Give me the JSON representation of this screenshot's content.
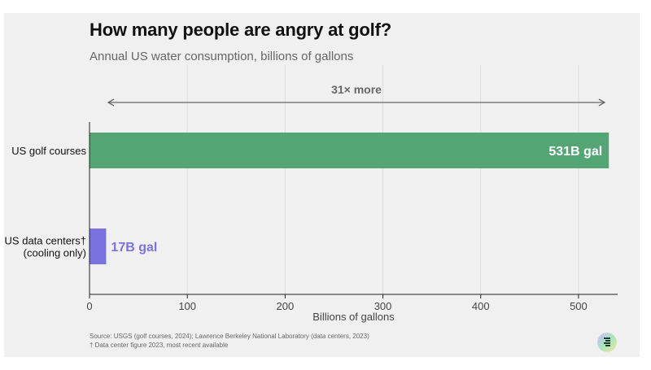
{
  "header": {
    "title": "How many people are angry at golf?",
    "subtitle": "Annual US water consumption, billions of gallons"
  },
  "chart_data": {
    "type": "bar",
    "orientation": "horizontal",
    "title": "How many people are angry at golf?",
    "subtitle": "Annual US water consumption, billions of gallons",
    "xlabel": "Billions of gallons",
    "ylabel": "",
    "xlim": [
      0,
      540
    ],
    "xticks": [
      0,
      100,
      200,
      300,
      400,
      500
    ],
    "categories": [
      "US golf courses",
      "US data centers† (cooling only)"
    ],
    "category_lines": [
      [
        "US golf courses"
      ],
      [
        "US data centers†",
        "(cooling only)"
      ]
    ],
    "values": [
      531,
      17
    ],
    "data_labels": [
      "531B gal",
      "17B gal"
    ],
    "colors": [
      "#53a574",
      "#7b72e2"
    ],
    "annotation": {
      "text": "31× more",
      "from": 17,
      "to": 531
    }
  },
  "footer": {
    "source": "Source: USGS (golf courses, 2024); Lawrence Berkeley National Laboratory (data centers, 2023)",
    "note": "† Data center figure 2023, most recent available",
    "logo_icon": "publisher-logo-icon"
  }
}
